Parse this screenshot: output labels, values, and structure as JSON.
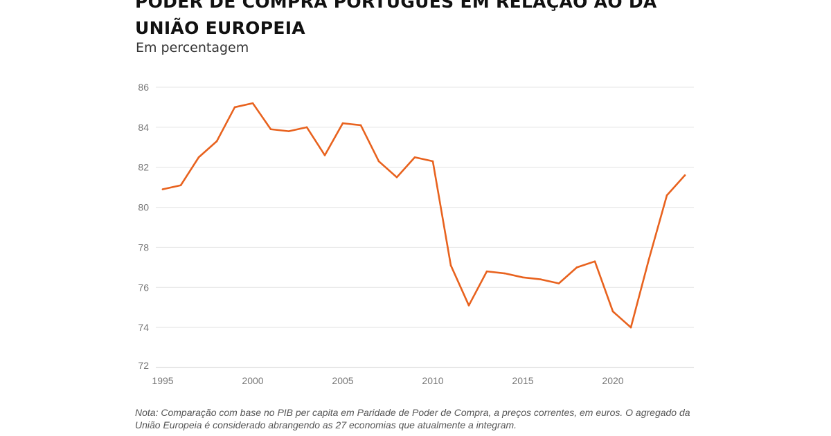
{
  "chart_data": {
    "type": "line",
    "title": "PODER DE COMPRA PORTUGUÊS EM RELAÇÃO AO DA UNIÃO EUROPEIA",
    "subtitle": "Em percentagem",
    "xlabel": "",
    "ylabel": "",
    "xlim": [
      1995,
      2024
    ],
    "ylim": [
      72,
      86
    ],
    "yticks": [
      "72",
      "74",
      "76",
      "78",
      "80",
      "82",
      "84",
      "86"
    ],
    "xticks": [
      "1995",
      "2000",
      "2005",
      "2010",
      "2015",
      "2020"
    ],
    "grid": true,
    "line_color": "#e8621e",
    "x": [
      1995,
      1996,
      1997,
      1998,
      1999,
      2000,
      2001,
      2002,
      2003,
      2004,
      2005,
      2006,
      2007,
      2008,
      2009,
      2010,
      2011,
      2012,
      2013,
      2014,
      2015,
      2016,
      2017,
      2018,
      2019,
      2020,
      2021,
      2022,
      2023,
      2024
    ],
    "series": [
      {
        "values": [
          80.9,
          81.1,
          82.5,
          83.3,
          85.0,
          85.2,
          83.9,
          83.8,
          84.0,
          82.6,
          84.2,
          84.1,
          82.3,
          81.5,
          82.5,
          82.3,
          77.1,
          75.1,
          76.8,
          76.7,
          76.5,
          76.4,
          76.2,
          77.0,
          77.3,
          74.8,
          74.0,
          77.4,
          80.6,
          81.6
        ]
      }
    ],
    "note": "Nota: Comparação com base no PIB per capita em Paridade de Poder de Compra, a preços correntes, em euros. O agregado da União Europeia é considerado abrangendo as 27 economias que atualmente a integram."
  }
}
